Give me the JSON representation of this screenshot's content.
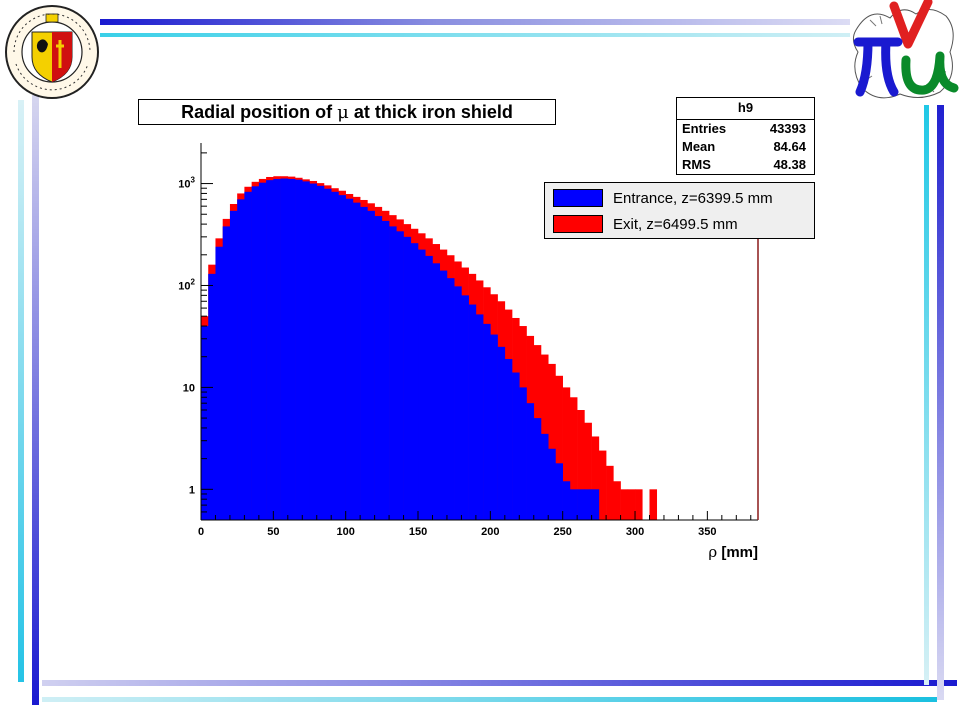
{
  "chart_data": {
    "type": "bar",
    "title_prefix": "Radial position of ",
    "title_symbol": "μ",
    "title_suffix": " at thick iron shield",
    "xlabel_symbol": "ρ",
    "xlabel_suffix": " [mm]",
    "ylabel": "",
    "yscale": "log",
    "xlim": [
      0,
      385
    ],
    "ylim": [
      0.5,
      2500
    ],
    "bin_width": 5,
    "x_ticks": [
      "0",
      "50",
      "100",
      "150",
      "200",
      "250",
      "300",
      "350"
    ],
    "x_tick_values": [
      0,
      50,
      100,
      150,
      200,
      250,
      300,
      350
    ],
    "y_ticks": [
      {
        "value": 1,
        "base": "1",
        "exp": ""
      },
      {
        "value": 10,
        "base": "10",
        "exp": ""
      },
      {
        "value": 100,
        "base": "10",
        "exp": "2"
      },
      {
        "value": 1000,
        "base": "10",
        "exp": "3"
      }
    ],
    "legend_position": "top-right",
    "series": [
      {
        "name": "Entrance, z=6399.5 mm",
        "color": "#0000ff",
        "values": [
          40,
          130,
          240,
          380,
          540,
          700,
          830,
          940,
          1020,
          1080,
          1110,
          1120,
          1110,
          1090,
          1050,
          1000,
          950,
          890,
          830,
          770,
          710,
          650,
          590,
          540,
          480,
          430,
          380,
          340,
          300,
          260,
          225,
          195,
          165,
          140,
          118,
          98,
          80,
          65,
          52,
          42,
          33,
          25,
          19,
          14,
          10,
          7,
          5,
          3.5,
          2.5,
          1.8,
          1.2,
          1,
          1,
          1,
          1,
          0,
          0,
          0,
          0,
          0,
          0,
          0,
          0,
          0,
          0,
          0,
          0,
          0,
          0,
          0,
          0,
          0,
          0,
          0,
          0,
          0,
          0
        ]
      },
      {
        "name": "Exit, z=6499.5 mm",
        "color": "#ff0000",
        "values": [
          50,
          160,
          290,
          450,
          630,
          800,
          930,
          1040,
          1110,
          1160,
          1180,
          1180,
          1170,
          1140,
          1100,
          1060,
          1010,
          960,
          900,
          850,
          790,
          740,
          690,
          640,
          590,
          540,
          490,
          445,
          400,
          360,
          325,
          290,
          255,
          225,
          198,
          172,
          150,
          130,
          112,
          96,
          82,
          70,
          58,
          48,
          40,
          32,
          26,
          21,
          17,
          13,
          10,
          8,
          6,
          4.5,
          3.3,
          2.4,
          1.7,
          1.2,
          1,
          1,
          1,
          0,
          1,
          0,
          0,
          0,
          0,
          0,
          0,
          0,
          0,
          0,
          0,
          0,
          0,
          0,
          0
        ]
      }
    ],
    "stats": {
      "name": "h9",
      "entries_label": "Entries",
      "entries": "43393",
      "mean_label": "Mean",
      "mean": "84.64",
      "rms_label": "RMS",
      "rms": "48.38"
    }
  }
}
